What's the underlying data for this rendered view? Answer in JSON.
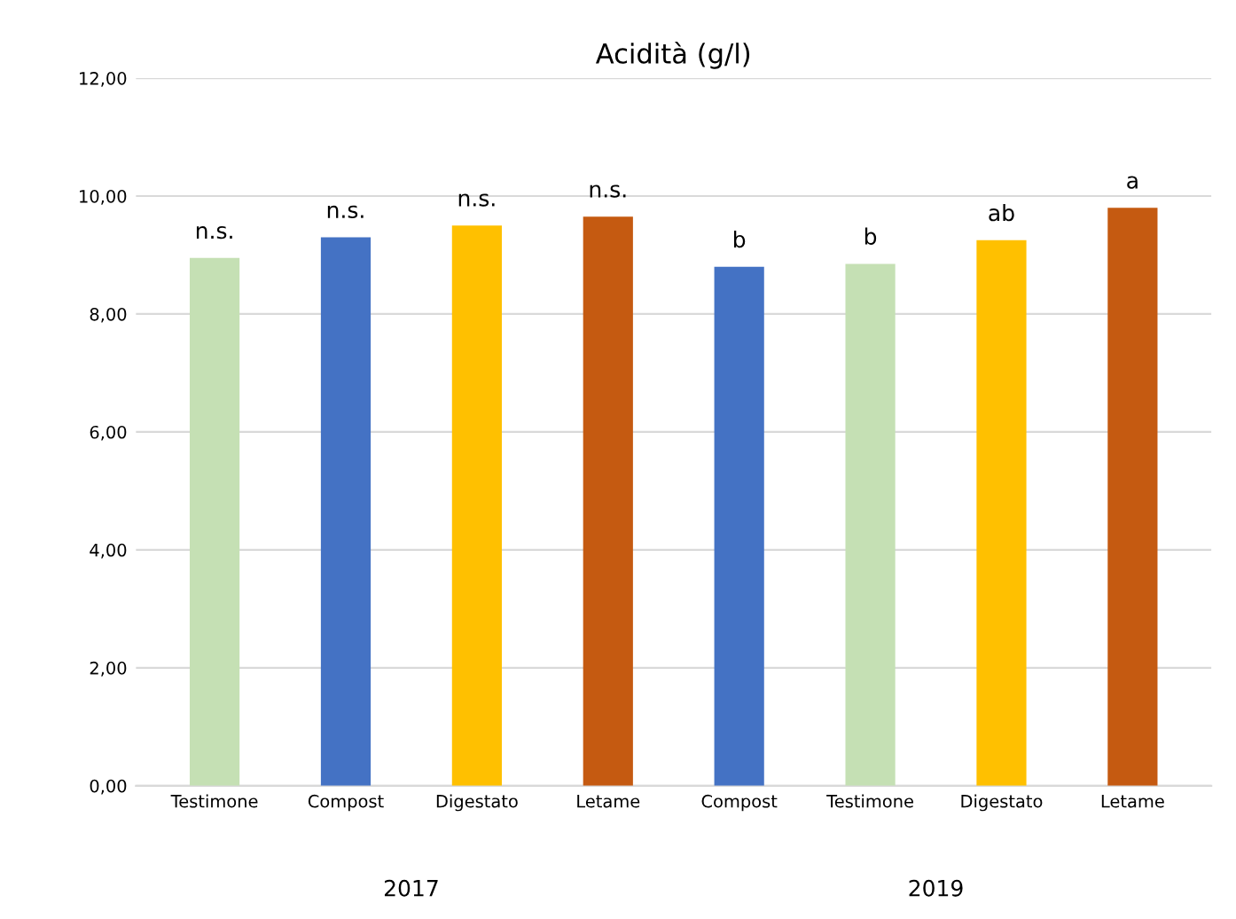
{
  "chart_data": {
    "type": "bar",
    "title": "Acidità (g/l)",
    "categories": [
      "Testimone",
      "Compost",
      "Digestato",
      "Letame",
      "Compost",
      "Testimone",
      "Digestato",
      "Letame"
    ],
    "values": [
      8.95,
      9.3,
      9.5,
      9.65,
      8.8,
      8.85,
      9.25,
      9.8
    ],
    "colors": [
      "#c5e0b4",
      "#4472c4",
      "#ffc000",
      "#c55a11",
      "#4472c4",
      "#c5e0b4",
      "#ffc000",
      "#c55a11"
    ],
    "value_labels": [
      "n.s.",
      "n.s.",
      "n.s.",
      "n.s.",
      "b",
      "b",
      "ab",
      "a"
    ],
    "ylim": [
      0,
      12
    ],
    "yticks": [
      {
        "value": 0,
        "label": "0,00"
      },
      {
        "value": 2,
        "label": "2,00"
      },
      {
        "value": 4,
        "label": "4,00"
      },
      {
        "value": 6,
        "label": "6,00"
      },
      {
        "value": 8,
        "label": "8,00"
      },
      {
        "value": 10,
        "label": "10,00"
      },
      {
        "value": 12,
        "label": "12,00"
      }
    ],
    "grid": "y",
    "annotations": [
      "2017",
      "2019"
    ]
  }
}
